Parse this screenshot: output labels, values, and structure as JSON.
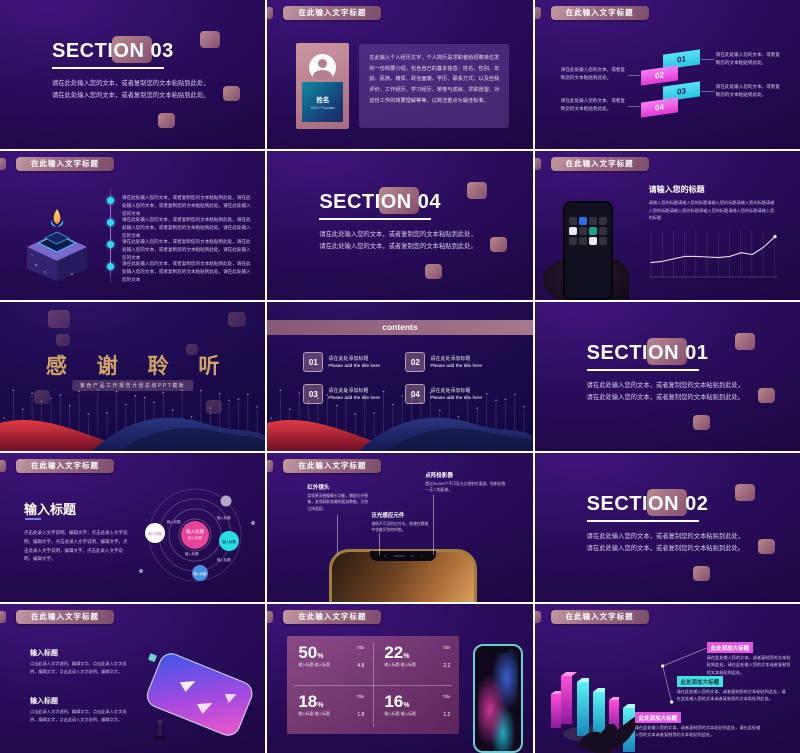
{
  "palette": {
    "accent_cyan": "#3fd9ef",
    "accent_pink": "#f06ef0",
    "accent_blue": "#4a90e2",
    "rose": "#bb8a93",
    "gold_title": "#d2a368",
    "wave_red": "#d8303a",
    "wave_blue": "#232a78",
    "bg_purple": "#2b0d5e"
  },
  "common": {
    "header_title": "在此输入文字标题",
    "section_body": "请在此处输入您的文本，或者复制您的文本粘贴到此处，请在此处输入您的文本，或者复制您的文本粘贴到此处。",
    "placeholder_short": "请在此处输入您的文本，或者复制您的文本粘贴到此处。",
    "percent_sign": "%"
  },
  "slides": {
    "s1": {
      "title": "SECTION 03"
    },
    "s2": {
      "name": "姓名",
      "role": "CEO / Founder",
      "body": "在此输入个人经历文字，个人简历是求职者给招聘单位发的一份简要介绍，包含自己的基本信息：姓名、性别、年龄、民族、籍贯、政治面貌、学历、联系方式、以及自我评价、工作经历、学习经历、荣誉与成就、求职愿望、对这份工作的简要理解等等，以简洁重点为最佳标准。"
    },
    "s3": {
      "text": "请在此处输入您的文本，或者复制您的文本粘贴到此处。",
      "steps": [
        {
          "num": "01"
        },
        {
          "num": "02"
        },
        {
          "num": "03"
        },
        {
          "num": "04"
        }
      ]
    },
    "s4": {
      "item": "请在此处输入您的文本，或者复制您的文本粘贴到此处，请在此处输入您的文本，或者复制您的文本粘贴到此处，请在此处输入您的文本"
    },
    "s5": {
      "title": "SECTION 04"
    },
    "s6": {
      "heading": "请输入您的标题",
      "body": "请输入您的标题请输入您的标题请输入您的标题请输入您的标题请输入您的标题请输入您的标题请输入您的标题请输入您的标题请输入您的标题",
      "chart": {
        "type": "line",
        "points": [
          20,
          22,
          26,
          30,
          30,
          29,
          28,
          30,
          36,
          33,
          45,
          62
        ]
      }
    },
    "s7": {
      "title": "感 谢 聆 听",
      "subtitle": "紫色产品工作报告计划总结PPT模板"
    },
    "s8": {
      "title": "contents",
      "zh": "请在此处添加标题",
      "en": "Please add the title here",
      "items": [
        {
          "num": "01"
        },
        {
          "num": "02"
        },
        {
          "num": "03"
        },
        {
          "num": "04"
        }
      ]
    },
    "s9": {
      "title": "SECTION 01"
    },
    "s10": {
      "heading": "输入标题",
      "body": "点击此录入文字说明，编辑文字，点击此录入文字说明，编辑文字，点击此录入文字说明，编辑文字，点击此录入文字说明，编辑文字，点击此录入文字说明，编辑文字。",
      "center": "输入标题",
      "sat": "输入标题"
    },
    "s11": {
      "items": [
        {
          "title": "红外镜头",
          "text": "实现原深感摄像头功能，捕捉红外图像，进而获取准确的面部数据，识别立体面容。"
        },
        {
          "title": "泛光感应元件",
          "text": "借助不可见的红外光，即使在黑暗中也能识别你的脸。"
        },
        {
          "title": "点阵投影器",
          "text": "超过30,000个不可见光点投射在面部，绘制出独一无二的面谱。"
        }
      ]
    },
    "s12": {
      "title": "SECTION 02"
    },
    "s13": {
      "heading": "输入标题",
      "body": "点击此录入文字说明，编辑文字，点击此录入文字说明，编辑文字，点击此录入文字说明，编辑文字。"
    },
    "s14": {
      "items": [
        {
          "pct": "50",
          "sub": "输入标题 输入标题",
          "title": "Title",
          "value": "4.8"
        },
        {
          "pct": "22",
          "sub": "输入标题 输入标题",
          "title": "Title",
          "value": "2.2"
        },
        {
          "pct": "18",
          "sub": "输入标题 输入标题",
          "title": "Title",
          "value": "1.8"
        },
        {
          "pct": "16",
          "sub": "输入标题 输入标题",
          "title": "Title",
          "value": "1.2"
        }
      ]
    },
    "s15": {
      "tag": "此处添加大标题",
      "body": "请在此处输入您的文本，或者复制您的文本粘贴到此处，请在此处输入您的文本或者复制您的文本粘贴到此处。"
    }
  }
}
